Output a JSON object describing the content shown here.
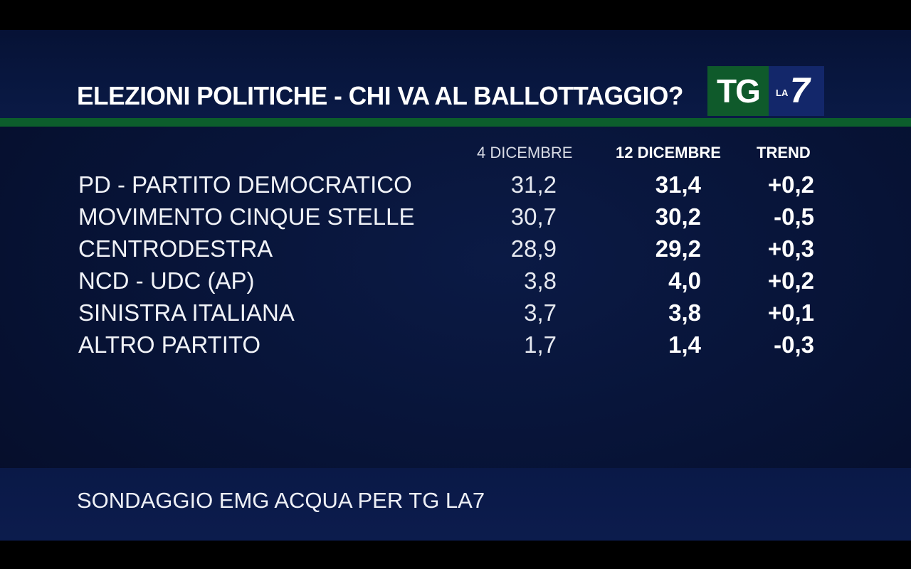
{
  "title": "ELEZIONI POLITICHE - CHI VA AL BALLOTTAGGIO?",
  "logo": {
    "tg": "TG",
    "la": "LA",
    "seven": "7",
    "tg_color": "#0f5a2b",
    "la7_color": "#13276a"
  },
  "footer": "SONDAGGIO EMG ACQUA PER TG LA7",
  "colors": {
    "background": "#071336",
    "accent_line": "#0c5e2c"
  },
  "chart_data": {
    "type": "table",
    "title": "ELEZIONI POLITICHE - CHI VA AL BALLOTTAGGIO?",
    "columns": [
      "4 DICEMBRE",
      "12 DICEMBRE",
      "TREND"
    ],
    "rows": [
      {
        "party": "PD - PARTITO DEMOCRATICO",
        "v1": "31,2",
        "v2": "31,4",
        "trend": "+0,2"
      },
      {
        "party": "MOVIMENTO CINQUE STELLE",
        "v1": "30,7",
        "v2": "30,2",
        "trend": "-0,5"
      },
      {
        "party": "CENTRODESTRA",
        "v1": "28,9",
        "v2": "29,2",
        "trend": "+0,3"
      },
      {
        "party": "NCD - UDC (AP)",
        "v1": "3,8",
        "v2": "4,0",
        "trend": "+0,2"
      },
      {
        "party": "SINISTRA ITALIANA",
        "v1": "3,7",
        "v2": "3,8",
        "trend": "+0,1"
      },
      {
        "party": "ALTRO PARTITO",
        "v1": "1,7",
        "v2": "1,4",
        "trend": "-0,3"
      }
    ]
  }
}
